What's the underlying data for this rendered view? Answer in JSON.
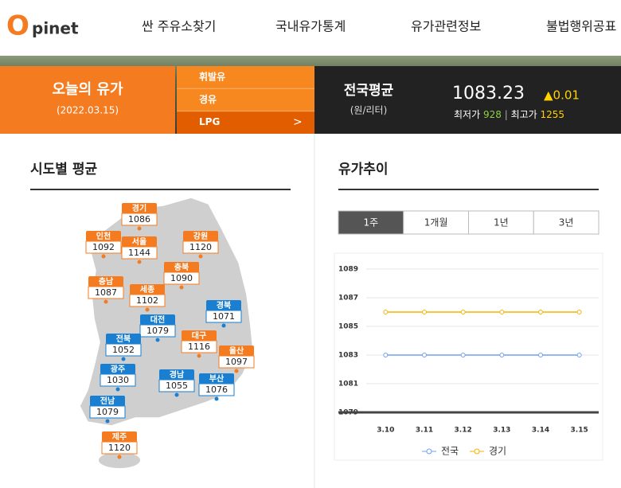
{
  "header": {
    "logo": {
      "first": "O",
      "rest": "pinet"
    },
    "nav": [
      "싼 주유소찾기",
      "국내유가통계",
      "유가관련정보",
      "불법행위공표"
    ]
  },
  "banner": {
    "title": "오늘의 유가",
    "date": "(2022.03.15)",
    "fuels": [
      "휘발유",
      "경유",
      "LPG"
    ],
    "selected_fuel": 2,
    "arrow": ">",
    "national": {
      "label": "전국평균",
      "unit": "(원/리터)",
      "price": "1083.23",
      "change": "▲0.01",
      "min_label": "최저가",
      "min": "928",
      "separator": "|",
      "max_label": "최고가",
      "max": "1255"
    }
  },
  "regional": {
    "title": "시도별 평균",
    "regions": [
      {
        "name": "경기",
        "price": 1086,
        "color": "#f47b20"
      },
      {
        "name": "인천",
        "price": 1092,
        "color": "#f47b20"
      },
      {
        "name": "서울",
        "price": 1144,
        "color": "#f47b20"
      },
      {
        "name": "강원",
        "price": 1120,
        "color": "#f47b20"
      },
      {
        "name": "충북",
        "price": 1090,
        "color": "#f47b20"
      },
      {
        "name": "충남",
        "price": 1087,
        "color": "#f47b20"
      },
      {
        "name": "세종",
        "price": 1102,
        "color": "#f47b20"
      },
      {
        "name": "경북",
        "price": 1071,
        "color": "#1a7fd0"
      },
      {
        "name": "대전",
        "price": 1079,
        "color": "#1a7fd0"
      },
      {
        "name": "대구",
        "price": 1116,
        "color": "#f47b20"
      },
      {
        "name": "전북",
        "price": 1052,
        "color": "#1a7fd0"
      },
      {
        "name": "울산",
        "price": 1097,
        "color": "#f47b20"
      },
      {
        "name": "광주",
        "price": 1030,
        "color": "#1a7fd0"
      },
      {
        "name": "경남",
        "price": 1055,
        "color": "#1a7fd0"
      },
      {
        "name": "부산",
        "price": 1076,
        "color": "#1a7fd0"
      },
      {
        "name": "전남",
        "price": 1079,
        "color": "#1a7fd0"
      },
      {
        "name": "제주",
        "price": 1120,
        "color": "#f47b20"
      }
    ]
  },
  "trend": {
    "title": "유가추이",
    "tabs": [
      "1주",
      "1개월",
      "1년",
      "3년"
    ],
    "selected_tab": 0
  },
  "chart_data": {
    "type": "line",
    "categories": [
      "3.10",
      "3.11",
      "3.12",
      "3.13",
      "3.14",
      "3.15"
    ],
    "series": [
      {
        "name": "전국",
        "color": "#6fa0f0",
        "values": [
          1083,
          1083,
          1083,
          1083,
          1083,
          1083
        ]
      },
      {
        "name": "경기",
        "color": "#f5b400",
        "values": [
          1086,
          1086,
          1086,
          1086,
          1086,
          1086
        ]
      }
    ],
    "ylim": [
      1079,
      1089
    ],
    "yticks": [
      1079,
      1081,
      1083,
      1085,
      1087,
      1089
    ],
    "grid": true
  }
}
